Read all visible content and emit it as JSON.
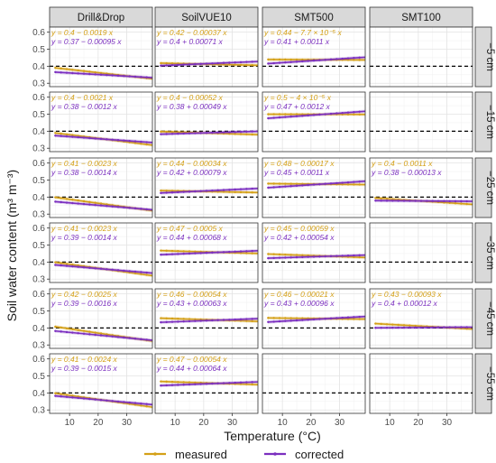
{
  "chart_data": {
    "type": "line",
    "ylabel": "Soil water content (m³ m⁻³)",
    "xlabel": "Temperature (°C)",
    "xlim": [
      3,
      39
    ],
    "ylim": [
      0.28,
      0.63
    ],
    "x_ticks": [
      10,
      20,
      30
    ],
    "x_tick_labels": [
      "10",
      "20",
      "30"
    ],
    "y_ticks": [
      0.3,
      0.4,
      0.5,
      0.6
    ],
    "y_tick_labels": [
      "0.3",
      "0.4",
      "0.5",
      "0.6"
    ],
    "reference_line_y": 0.4,
    "grid": true,
    "legend_position": "bottom",
    "columns": [
      "Drill&Drop",
      "SoilVUE10",
      "SMT500",
      "SMT100"
    ],
    "rows": [
      "−5 cm",
      "−15 cm",
      "−25 cm",
      "−35 cm",
      "−45 cm",
      "−55 cm"
    ],
    "series": [
      {
        "name": "measured",
        "color": "#d4a017"
      },
      {
        "name": "corrected",
        "color": "#7b2fbf"
      }
    ],
    "panels": [
      {
        "col": 0,
        "row": 0,
        "measured_eq": "y = 0.4 − 0.0019 x",
        "corrected_eq": "y = 0.37 − 0.00095 x",
        "measured": [
          0.4,
          -0.0019
        ],
        "corrected": [
          0.37,
          -0.00095
        ]
      },
      {
        "col": 1,
        "row": 0,
        "measured_eq": "y = 0.42 − 0.00037 x",
        "corrected_eq": "y = 0.4 + 0.00071 x",
        "measured": [
          0.42,
          -0.00037
        ],
        "corrected": [
          0.4,
          0.00071
        ]
      },
      {
        "col": 2,
        "row": 0,
        "measured_eq": "y = 0.44 − 7.7 × 10⁻⁵ x",
        "corrected_eq": "y = 0.41 + 0.0011 x",
        "measured": [
          0.44,
          -7.7e-05
        ],
        "corrected": [
          0.41,
          0.0011
        ]
      },
      {
        "col": 0,
        "row": 1,
        "measured_eq": "y = 0.4 − 0.0021 x",
        "corrected_eq": "y = 0.38 − 0.0012 x",
        "measured": [
          0.4,
          -0.0021
        ],
        "corrected": [
          0.38,
          -0.0012
        ]
      },
      {
        "col": 1,
        "row": 1,
        "measured_eq": "y = 0.4 − 0.00052 x",
        "corrected_eq": "y = 0.38 + 0.00049 x",
        "measured": [
          0.4,
          -0.00052
        ],
        "corrected": [
          0.38,
          0.00049
        ]
      },
      {
        "col": 2,
        "row": 1,
        "measured_eq": "y = 0.5 − 4 × 10⁻⁵ x",
        "corrected_eq": "y = 0.47 + 0.0012 x",
        "measured": [
          0.5,
          -4e-05
        ],
        "corrected": [
          0.47,
          0.0012
        ]
      },
      {
        "col": 0,
        "row": 2,
        "measured_eq": "y = 0.41 − 0.0023 x",
        "corrected_eq": "y = 0.38 − 0.0014 x",
        "measured": [
          0.41,
          -0.0023
        ],
        "corrected": [
          0.38,
          -0.0014
        ]
      },
      {
        "col": 1,
        "row": 2,
        "measured_eq": "y = 0.44 − 0.00034 x",
        "corrected_eq": "y = 0.42 + 0.00079 x",
        "measured": [
          0.44,
          -0.00034
        ],
        "corrected": [
          0.42,
          0.00079
        ]
      },
      {
        "col": 2,
        "row": 2,
        "measured_eq": "y = 0.48 − 0.00017 x",
        "corrected_eq": "y = 0.45 + 0.0011 x",
        "measured": [
          0.48,
          -0.00017
        ],
        "corrected": [
          0.45,
          0.0011
        ]
      },
      {
        "col": 3,
        "row": 2,
        "measured_eq": "y = 0.4 − 0.0011 x",
        "corrected_eq": "y = 0.38 − 0.00013 x",
        "measured": [
          0.4,
          -0.0011
        ],
        "corrected": [
          0.38,
          -0.00013
        ]
      },
      {
        "col": 0,
        "row": 3,
        "measured_eq": "y = 0.41 − 0.0023 x",
        "corrected_eq": "y = 0.39 − 0.0014 x",
        "measured": [
          0.41,
          -0.0023
        ],
        "corrected": [
          0.39,
          -0.0014
        ]
      },
      {
        "col": 1,
        "row": 3,
        "measured_eq": "y = 0.47 − 0.0005 x",
        "corrected_eq": "y = 0.44 + 0.00068 x",
        "measured": [
          0.47,
          -0.0005
        ],
        "corrected": [
          0.44,
          0.00068
        ]
      },
      {
        "col": 2,
        "row": 3,
        "measured_eq": "y = 0.45 − 0.00059 x",
        "corrected_eq": "y = 0.42 + 0.00054 x",
        "measured": [
          0.45,
          -0.00059
        ],
        "corrected": [
          0.42,
          0.00054
        ]
      },
      {
        "col": 0,
        "row": 4,
        "measured_eq": "y = 0.42 − 0.0025 x",
        "corrected_eq": "y = 0.39 − 0.0016 x",
        "measured": [
          0.42,
          -0.0025
        ],
        "corrected": [
          0.39,
          -0.0016
        ]
      },
      {
        "col": 1,
        "row": 4,
        "measured_eq": "y = 0.46 − 0.00054 x",
        "corrected_eq": "y = 0.43 + 0.00063 x",
        "measured": [
          0.46,
          -0.00054
        ],
        "corrected": [
          0.43,
          0.00063
        ]
      },
      {
        "col": 2,
        "row": 4,
        "measured_eq": "y = 0.46 − 0.00021 x",
        "corrected_eq": "y = 0.43 + 0.00096 x",
        "measured": [
          0.46,
          -0.00021
        ],
        "corrected": [
          0.43,
          0.00096
        ]
      },
      {
        "col": 3,
        "row": 4,
        "measured_eq": "y = 0.43 − 0.00093 x",
        "corrected_eq": "y = 0.4 + 0.00012 x",
        "measured": [
          0.43,
          -0.00093
        ],
        "corrected": [
          0.4,
          0.00012
        ]
      },
      {
        "col": 0,
        "row": 5,
        "measured_eq": "y = 0.41 − 0.0024 x",
        "corrected_eq": "y = 0.39 − 0.0015 x",
        "measured": [
          0.41,
          -0.0024
        ],
        "corrected": [
          0.39,
          -0.0015
        ]
      },
      {
        "col": 1,
        "row": 5,
        "measured_eq": "y = 0.47 − 0.00054 x",
        "corrected_eq": "y = 0.44 + 0.00064 x",
        "measured": [
          0.47,
          -0.00054
        ],
        "corrected": [
          0.44,
          0.00064
        ]
      }
    ]
  }
}
